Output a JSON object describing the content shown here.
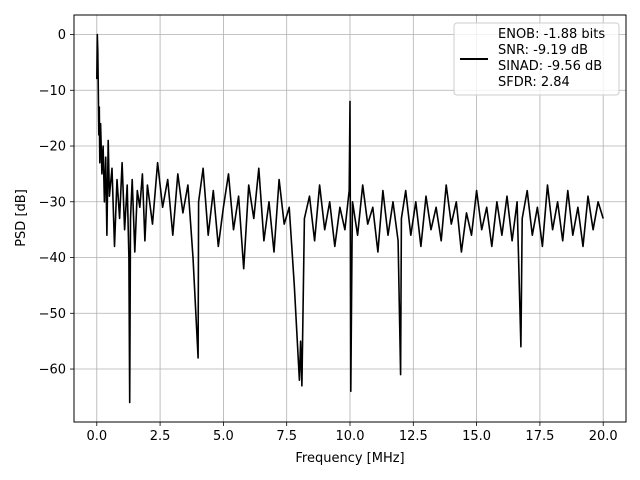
{
  "chart_data": {
    "type": "line",
    "title": "",
    "xlabel": "Frequency [MHz]",
    "ylabel": "PSD [dB]",
    "xlim": [
      -0.9,
      20.9
    ],
    "ylim": [
      -69.5,
      3.5
    ],
    "xticks": [
      0.0,
      2.5,
      5.0,
      7.5,
      10.0,
      12.5,
      15.0,
      17.5,
      20.0
    ],
    "xtick_labels": [
      "0.0",
      "2.5",
      "5.0",
      "7.5",
      "10.0",
      "12.5",
      "15.0",
      "17.5",
      "20.0"
    ],
    "yticks": [
      0,
      -10,
      -20,
      -30,
      -40,
      -50,
      -60
    ],
    "ytick_labels": [
      "0",
      "−10",
      "−20",
      "−30",
      "−40",
      "−50",
      "−60"
    ],
    "grid": true,
    "legend_position": "top-right",
    "legend_lines": [
      "ENOB: -1.88 bits",
      "SNR: -9.19 dB",
      "SINAD: -9.56 dB",
      "SFDR: 2.84"
    ],
    "series": [
      {
        "color": "#000000",
        "description": "noise-like power spectral density from 0 to 20 MHz, mostly between about -22 and -40 dB, with a 0 dB peak at DC and a spur near -12 dB at 10 MHz",
        "x": [
          0.0,
          0.02,
          0.04,
          0.06,
          0.08,
          0.1,
          0.12,
          0.15,
          0.2,
          0.25,
          0.3,
          0.35,
          0.4,
          0.45,
          0.5,
          0.6,
          0.7,
          0.8,
          0.9,
          1.0,
          1.1,
          1.2,
          1.27,
          1.3,
          1.33,
          1.4,
          1.5,
          1.6,
          1.7,
          1.8,
          1.9,
          2.0,
          2.2,
          2.4,
          2.6,
          2.8,
          3.0,
          3.2,
          3.4,
          3.6,
          3.8,
          4.0,
          4.02,
          4.2,
          4.4,
          4.6,
          4.8,
          5.0,
          5.2,
          5.4,
          5.6,
          5.8,
          6.0,
          6.2,
          6.4,
          6.6,
          6.8,
          7.0,
          7.2,
          7.4,
          7.6,
          7.8,
          8.0,
          8.05,
          8.1,
          8.2,
          8.4,
          8.6,
          8.8,
          9.0,
          9.2,
          9.4,
          9.6,
          9.8,
          9.97,
          10.0,
          10.03,
          10.08,
          10.1,
          10.3,
          10.5,
          10.7,
          10.9,
          11.1,
          11.3,
          11.5,
          11.7,
          11.9,
          12.0,
          12.03,
          12.2,
          12.4,
          12.6,
          12.8,
          13.0,
          13.2,
          13.4,
          13.6,
          13.8,
          14.0,
          14.2,
          14.4,
          14.6,
          14.8,
          15.0,
          15.2,
          15.4,
          15.6,
          15.8,
          16.0,
          16.2,
          16.4,
          16.6,
          16.75,
          16.8,
          17.0,
          17.2,
          17.4,
          17.6,
          17.8,
          18.0,
          18.2,
          18.4,
          18.6,
          18.8,
          19.0,
          19.2,
          19.4,
          19.6,
          19.8,
          20.0
        ],
        "y": [
          -8,
          0,
          -3,
          -10,
          -18,
          -13,
          -23,
          -16,
          -25,
          -20,
          -30,
          -22,
          -36,
          -19,
          -29,
          -24,
          -38,
          -26,
          -33,
          -23,
          -35,
          -27,
          -40,
          -66,
          -33,
          -26,
          -39,
          -28,
          -31,
          -25,
          -37,
          -27,
          -34,
          -23,
          -31,
          -26,
          -36,
          -25,
          -32,
          -27,
          -40,
          -58,
          -30,
          -24,
          -36,
          -28,
          -38,
          -31,
          -25,
          -35,
          -29,
          -42,
          -27,
          -33,
          -24,
          -37,
          -30,
          -39,
          -26,
          -34,
          -31,
          -45,
          -62,
          -55,
          -63,
          -33,
          -29,
          -37,
          -27,
          -35,
          -30,
          -38,
          -31,
          -35,
          -28,
          -12,
          -64,
          -38,
          -30,
          -36,
          -27,
          -34,
          -31,
          -39,
          -28,
          -36,
          -30,
          -37,
          -61,
          -33,
          -28,
          -36,
          -30,
          -38,
          -29,
          -35,
          -31,
          -37,
          -27,
          -34,
          -30,
          -39,
          -32,
          -36,
          -28,
          -35,
          -31,
          -38,
          -30,
          -36,
          -29,
          -37,
          -30,
          -56,
          -33,
          -28,
          -36,
          -31,
          -38,
          -27,
          -35,
          -30,
          -37,
          -28,
          -36,
          -31,
          -38,
          -29,
          -35,
          -30,
          -33
        ]
      }
    ]
  }
}
